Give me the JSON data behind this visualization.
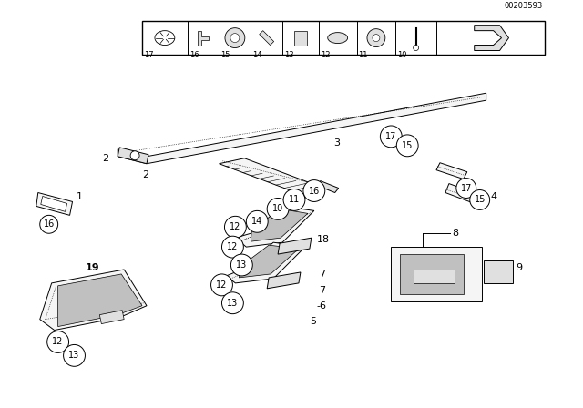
{
  "bg_color": "#ffffff",
  "part_number": "00203593",
  "line_color": "#000000",
  "fill_light": "#f5f5f5",
  "fill_mid": "#e0e0e0",
  "fill_dark": "#c0c0c0"
}
